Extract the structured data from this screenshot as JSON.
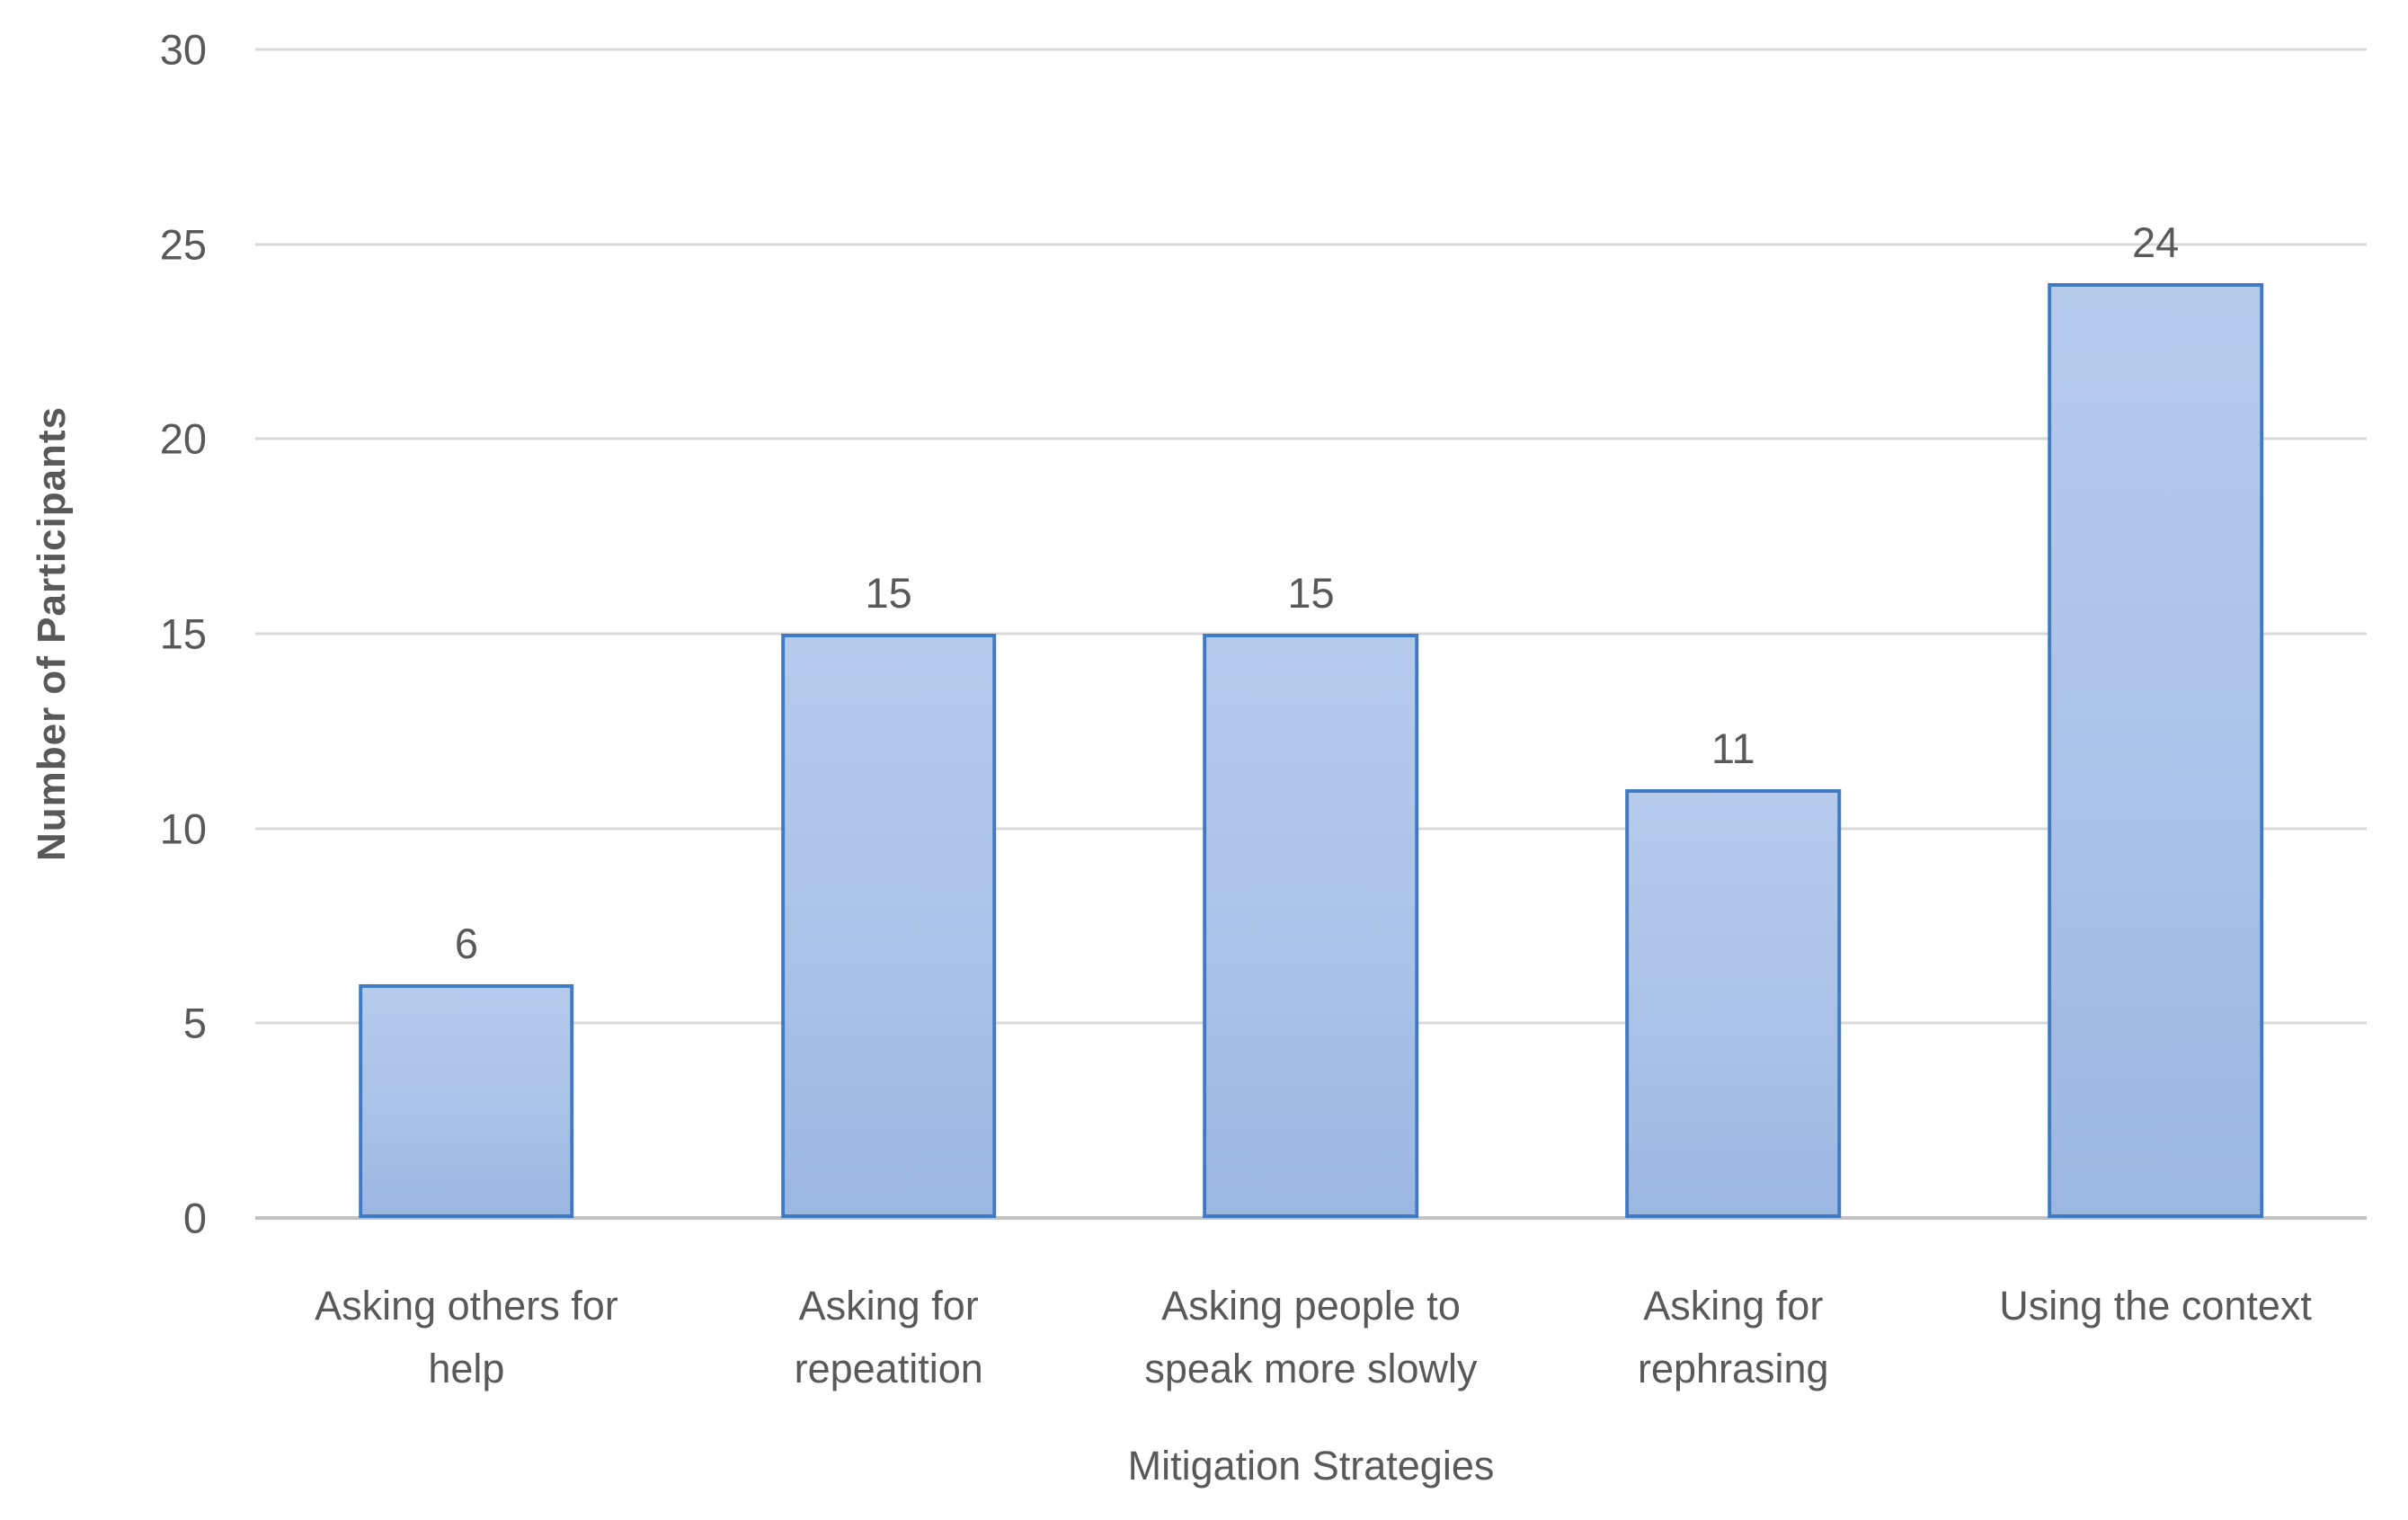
{
  "chart_data": {
    "type": "bar",
    "title": "",
    "xlabel": "Mitigation Strategies",
    "ylabel": "Number of Participants",
    "categories": [
      "Asking others for help",
      "Asking for repeatition",
      "Asking people to speak more slowly",
      "Asking for rephrasing",
      "Using the context"
    ],
    "values": [
      6,
      15,
      15,
      11,
      24
    ],
    "data_labels": [
      "6",
      "15",
      "15",
      "11",
      "24"
    ],
    "yticks": [
      0,
      5,
      10,
      15,
      20,
      25,
      30
    ],
    "ylim": [
      0,
      30
    ],
    "grid": true,
    "legend_position": "none",
    "colors": {
      "bar_fill_top": "#b6cbec",
      "bar_fill_mid": "#aac2e7",
      "bar_fill_bottom": "#9cb7e2",
      "bar_border": "#3e7bc4",
      "gridline": "#d9d9d9",
      "axis_line": "#c2c2c2",
      "text": "#595959"
    }
  }
}
